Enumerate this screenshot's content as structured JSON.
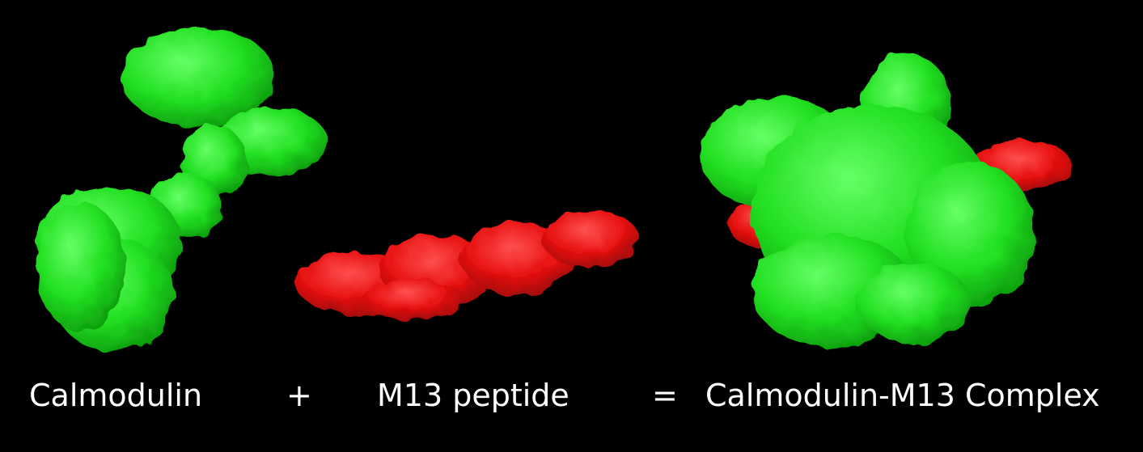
{
  "labels": {
    "calmodulin": "Calmodulin",
    "plus": "+",
    "m13": "M13 peptide",
    "equals": "=",
    "complex": "Calmodulin-M13 Complex"
  },
  "colors": {
    "background": "#000000",
    "protein_green": "#22ee22",
    "protein_green_dark": "#0fa80f",
    "peptide_red": "#ee1111",
    "peptide_red_dark": "#a00808",
    "text": "#ffffff"
  }
}
